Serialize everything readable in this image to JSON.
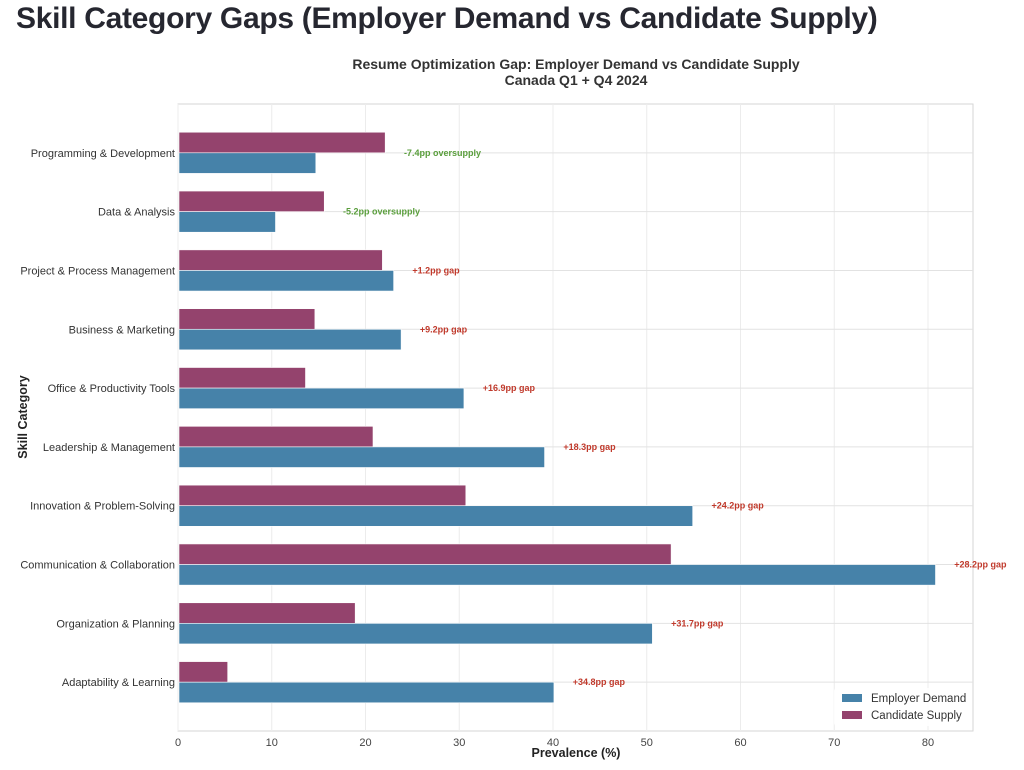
{
  "page": {
    "title": "Skill Category Gaps (Employer Demand vs Candidate Supply)"
  },
  "chart_data": {
    "type": "bar",
    "orientation": "horizontal",
    "title": "Resume Optimization Gap: Employer Demand vs Candidate Supply",
    "subtitle": "Canada Q1 + Q4 2024",
    "xlabel": "Prevalence (%)",
    "ylabel": "Skill Category",
    "xlim": [
      0,
      84.8
    ],
    "xticks": [
      0,
      10,
      20,
      30,
      40,
      50,
      60,
      70,
      80
    ],
    "grid": true,
    "legend_position": "bottom-right",
    "categories": [
      "Programming & Development",
      "Data & Analysis",
      "Project & Process Management",
      "Business & Marketing",
      "Office & Productivity Tools",
      "Leadership & Management",
      "Innovation & Problem-Solving",
      "Communication & Collaboration",
      "Organization & Planning",
      "Adaptability & Learning"
    ],
    "series": [
      {
        "name": "Employer Demand",
        "color": "#4682a9",
        "values": [
          14.7,
          10.4,
          23.0,
          23.8,
          30.5,
          39.1,
          54.9,
          80.8,
          50.6,
          40.1
        ]
      },
      {
        "name": "Candidate Supply",
        "color": "#94436d",
        "values": [
          22.1,
          15.6,
          21.8,
          14.6,
          13.6,
          20.8,
          30.7,
          52.6,
          18.9,
          5.3
        ]
      }
    ],
    "annotations": [
      {
        "text": "-7.4pp oversupply",
        "type": "oversupply"
      },
      {
        "text": "-5.2pp oversupply",
        "type": "oversupply"
      },
      {
        "text": "+1.2pp gap",
        "type": "gap"
      },
      {
        "text": "+9.2pp gap",
        "type": "gap"
      },
      {
        "text": "+16.9pp gap",
        "type": "gap"
      },
      {
        "text": "+18.3pp gap",
        "type": "gap"
      },
      {
        "text": "+24.2pp gap",
        "type": "gap"
      },
      {
        "text": "+28.2pp gap",
        "type": "gap"
      },
      {
        "text": "+31.7pp gap",
        "type": "gap"
      },
      {
        "text": "+34.8pp gap",
        "type": "gap"
      }
    ],
    "annotation_colors": {
      "oversupply": "#5a9e3c",
      "gap": "#c0392b"
    }
  }
}
